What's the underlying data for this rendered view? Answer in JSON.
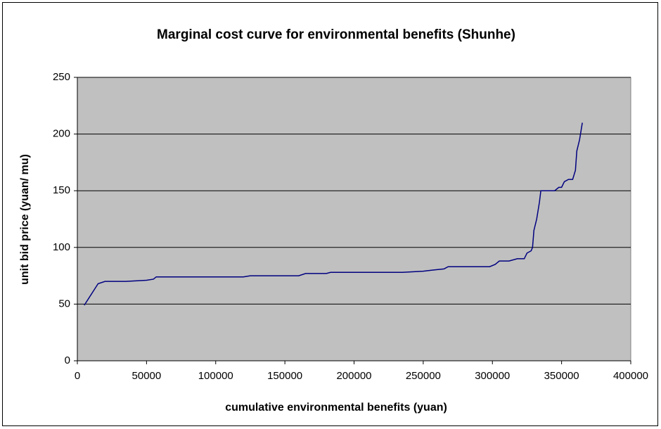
{
  "chart_data": {
    "type": "line",
    "title": "Marginal cost curve for environmental benefits (Shunhe)",
    "xlabel": "cumulative environmental benefits (yuan)",
    "ylabel": "unit bid price (yuan/ mu)",
    "xlim": [
      0,
      400000
    ],
    "xticks": [
      0,
      50000,
      100000,
      150000,
      200000,
      250000,
      300000,
      350000,
      400000
    ],
    "ylim": [
      0,
      250
    ],
    "yticks": [
      0,
      50,
      100,
      150,
      200,
      250
    ],
    "grid": true,
    "series": [
      {
        "name": "marginal cost",
        "color": "#000080",
        "x": [
          5000,
          15000,
          20000,
          35000,
          50000,
          55000,
          57000,
          120000,
          125000,
          160000,
          165000,
          180000,
          183000,
          235000,
          250000,
          257000,
          265000,
          268000,
          298000,
          302000,
          305000,
          312000,
          318000,
          323000,
          325000,
          328000,
          329000,
          330000,
          332000,
          334000,
          335000,
          345000,
          348000,
          350000,
          352000,
          355000,
          358000,
          360000,
          361000,
          363000,
          365000
        ],
        "values": [
          49,
          68,
          70,
          70,
          71,
          72,
          74,
          74,
          75,
          75,
          77,
          77,
          78,
          78,
          79,
          80,
          81,
          83,
          83,
          85,
          88,
          88,
          90,
          90,
          95,
          97,
          100,
          115,
          125,
          140,
          150,
          150,
          153,
          153,
          158,
          160,
          160,
          168,
          185,
          195,
          210
        ]
      }
    ]
  }
}
